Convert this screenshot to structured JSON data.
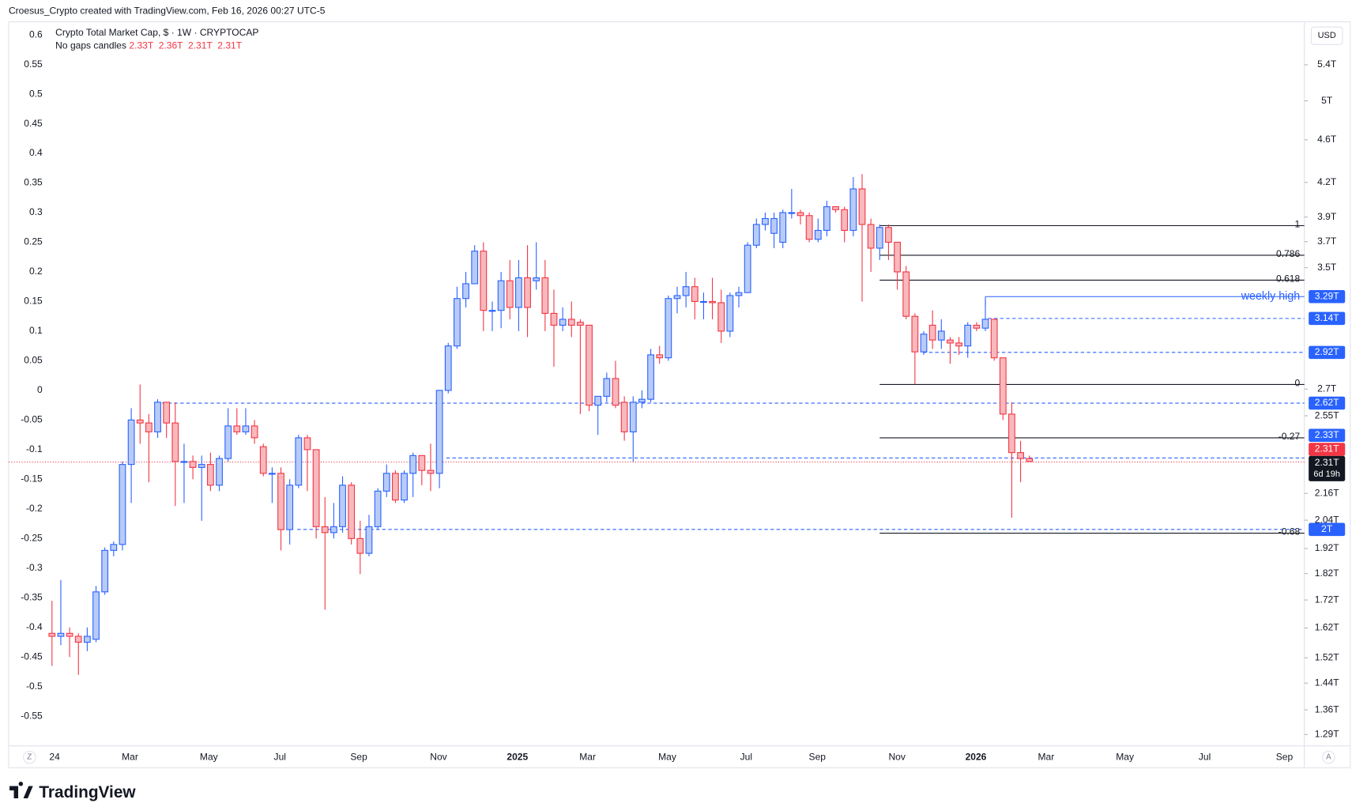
{
  "header": "Croesus_Crypto created with TradingView.com, Feb 16, 2026 00:27 UTC-5",
  "brand": "TradingView",
  "chart_data": {
    "type": "candlestick",
    "title": "Crypto Total Market Cap, $ · 1W · CRYPTOCAP",
    "subtitle": "No gaps candles",
    "legend_values": [
      "2.33T",
      "2.36T",
      "2.31T",
      "2.31T"
    ],
    "currency": "USD",
    "up_color": "#2962ff",
    "down_color": "#f23645",
    "up_fill": "#b8cbf7",
    "down_fill": "#f8b8bc",
    "grid": false,
    "y2_log": true,
    "ylim": [
      -0.6,
      0.622
    ],
    "yticks": [
      0.6,
      0.55,
      0.5,
      0.45,
      0.4,
      0.35,
      0.3,
      0.25,
      0.2,
      0.15,
      0.1,
      0.05,
      0,
      -0.05,
      -0.1,
      -0.15,
      -0.2,
      -0.25,
      -0.3,
      -0.35,
      -0.4,
      -0.45,
      -0.5,
      -0.55
    ],
    "y2lim": [
      1.259,
      5.92
    ],
    "y2ticks": [
      {
        "value": 5.4,
        "label": "5.4T"
      },
      {
        "value": 5,
        "label": "5T"
      },
      {
        "value": 4.6,
        "label": "4.6T"
      },
      {
        "value": 4.2,
        "label": "4.2T"
      },
      {
        "value": 3.9,
        "label": "3.9T"
      },
      {
        "value": 3.7,
        "label": "3.7T"
      },
      {
        "value": 3.5,
        "label": "3.5T"
      },
      {
        "value": 2.7,
        "label": "2.7T"
      },
      {
        "value": 2.55,
        "label": "2.55T"
      },
      {
        "value": 2.16,
        "label": "2.16T"
      },
      {
        "value": 2.04,
        "label": "2.04T"
      },
      {
        "value": 1.92,
        "label": "1.92T"
      },
      {
        "value": 1.82,
        "label": "1.82T"
      },
      {
        "value": 1.72,
        "label": "1.72T"
      },
      {
        "value": 1.62,
        "label": "1.62T"
      },
      {
        "value": 1.52,
        "label": "1.52T"
      },
      {
        "value": 1.44,
        "label": "1.44T"
      },
      {
        "value": 1.36,
        "label": "1.36T"
      },
      {
        "value": 1.29,
        "label": "1.29T"
      }
    ],
    "xlabels": [
      "24",
      "Mar",
      "May",
      "Jul",
      "Sep",
      "Nov",
      "2025",
      "Mar",
      "May",
      "Jul",
      "Sep",
      "Nov",
      "2026",
      "Mar",
      "May",
      "Jul",
      "Sep"
    ],
    "candles": {
      "open": [
        -0.41,
        -0.415,
        -0.41,
        -0.415,
        -0.425,
        -0.42,
        -0.34,
        -0.27,
        -0.26,
        -0.125,
        -0.05,
        -0.055,
        -0.07,
        -0.02,
        -0.055,
        -0.12,
        -0.12,
        -0.13,
        -0.125,
        -0.16,
        -0.115,
        -0.06,
        -0.07,
        -0.06,
        -0.095,
        -0.14,
        -0.14,
        -0.235,
        -0.16,
        -0.08,
        -0.1,
        -0.23,
        -0.24,
        -0.23,
        -0.16,
        -0.25,
        -0.275,
        -0.23,
        -0.17,
        -0.14,
        -0.185,
        -0.14,
        -0.11,
        -0.135,
        -0.14,
        0,
        0.075,
        0.155,
        0.18,
        0.235,
        0.135,
        0.135,
        0.185,
        0.14,
        0.19,
        0.185,
        0.19,
        0.13,
        0.11,
        0.12,
        0.115,
        0.11,
        -0.025,
        -0.01,
        0.02,
        -0.02,
        -0.07,
        -0.02,
        -0.015,
        0.06,
        0.055,
        0.155,
        0.16,
        0.175,
        0.15,
        0.15,
        0.148,
        0.1,
        0.16,
        0.165,
        0.245,
        0.28,
        0.265,
        0.25,
        0.3,
        0.3,
        0.295,
        0.255,
        0.27,
        0.31,
        0.305,
        0.27,
        0.34,
        0.28,
        0.24,
        0.275,
        0.25,
        0.2,
        0.125,
        0.065,
        0.11,
        0.085,
        0.085,
        0.08,
        0.075,
        0.11,
        0.105,
        0.12,
        0.055,
        -0.04,
        -0.105,
        -0.115
      ],
      "high": [
        -0.355,
        -0.32,
        -0.4,
        -0.41,
        -0.4,
        -0.33,
        -0.265,
        -0.255,
        -0.12,
        -0.03,
        0.01,
        -0.04,
        -0.015,
        -0.02,
        -0.02,
        -0.09,
        -0.11,
        -0.11,
        -0.105,
        -0.11,
        -0.03,
        -0.03,
        -0.03,
        -0.05,
        -0.09,
        -0.13,
        -0.13,
        -0.15,
        -0.075,
        -0.075,
        -0.1,
        -0.18,
        -0.19,
        -0.145,
        -0.155,
        -0.22,
        -0.21,
        -0.165,
        -0.125,
        -0.135,
        -0.135,
        -0.105,
        -0.11,
        -0.09,
        0,
        0.08,
        0.175,
        0.2,
        0.245,
        0.25,
        0.15,
        0.2,
        0.22,
        0.22,
        0.245,
        0.25,
        0.22,
        0.17,
        0.14,
        0.15,
        0.12,
        0.11,
        -0.01,
        0.03,
        0.05,
        -0.01,
        -0.01,
        0,
        0.07,
        0.075,
        0.16,
        0.175,
        0.2,
        0.19,
        0.165,
        0.19,
        0.17,
        0.165,
        0.175,
        0.25,
        0.29,
        0.3,
        0.3,
        0.305,
        0.34,
        0.305,
        0.3,
        0.29,
        0.32,
        0.31,
        0.31,
        0.36,
        0.365,
        0.29,
        0.28,
        0.28,
        0.25,
        0.21,
        0.13,
        0.1,
        0.135,
        0.12,
        0.09,
        0.09,
        0.115,
        0.115,
        0.15,
        0.12,
        0.055,
        -0.02,
        -0.085,
        -0.11
      ],
      "low": [
        -0.465,
        -0.43,
        -0.45,
        -0.48,
        -0.44,
        -0.425,
        -0.345,
        -0.28,
        -0.27,
        -0.19,
        -0.09,
        -0.155,
        -0.08,
        -0.08,
        -0.195,
        -0.19,
        -0.15,
        -0.22,
        -0.17,
        -0.17,
        -0.12,
        -0.075,
        -0.075,
        -0.09,
        -0.145,
        -0.19,
        -0.27,
        -0.26,
        -0.165,
        -0.17,
        -0.25,
        -0.37,
        -0.25,
        -0.24,
        -0.26,
        -0.31,
        -0.28,
        -0.235,
        -0.18,
        -0.19,
        -0.19,
        -0.18,
        -0.16,
        -0.17,
        -0.165,
        -0.005,
        0.07,
        0.14,
        0.18,
        0.1,
        0.1,
        0.105,
        0.12,
        0.1,
        0.09,
        0.17,
        0.1,
        0.04,
        0.1,
        0.09,
        -0.04,
        -0.035,
        -0.075,
        -0.02,
        -0.03,
        -0.085,
        -0.12,
        -0.03,
        -0.02,
        0.045,
        0.05,
        0.13,
        0.14,
        0.12,
        0.12,
        0.12,
        0.08,
        0.09,
        0.14,
        0.165,
        0.24,
        0.27,
        0.24,
        0.24,
        0.29,
        0.28,
        0.25,
        0.25,
        0.26,
        0.3,
        0.25,
        0.26,
        0.15,
        0.2,
        0.22,
        0.22,
        0.17,
        0.12,
        0.01,
        0.06,
        0.07,
        0.07,
        0.045,
        0.06,
        0.055,
        0.1,
        0.1,
        0.05,
        -0.05,
        -0.215,
        -0.155,
        -0.12
      ],
      "close": [
        -0.415,
        -0.41,
        -0.415,
        -0.425,
        -0.415,
        -0.34,
        -0.27,
        -0.26,
        -0.125,
        -0.05,
        -0.055,
        -0.07,
        -0.02,
        -0.055,
        -0.12,
        -0.12,
        -0.13,
        -0.125,
        -0.16,
        -0.115,
        -0.06,
        -0.07,
        -0.06,
        -0.08,
        -0.14,
        -0.14,
        -0.235,
        -0.16,
        -0.08,
        -0.1,
        -0.23,
        -0.24,
        -0.23,
        -0.16,
        -0.25,
        -0.275,
        -0.23,
        -0.17,
        -0.14,
        -0.185,
        -0.14,
        -0.11,
        -0.135,
        -0.14,
        0,
        0.075,
        0.155,
        0.18,
        0.235,
        0.135,
        0.135,
        0.185,
        0.14,
        0.19,
        0.14,
        0.19,
        0.13,
        0.11,
        0.12,
        0.11,
        0.11,
        -0.025,
        -0.01,
        0.02,
        -0.025,
        -0.07,
        -0.02,
        -0.015,
        0.06,
        0.055,
        0.155,
        0.16,
        0.175,
        0.15,
        0.15,
        0.148,
        0.1,
        0.16,
        0.165,
        0.245,
        0.28,
        0.29,
        0.29,
        0.3,
        0.3,
        0.295,
        0.255,
        0.27,
        0.31,
        0.305,
        0.27,
        0.34,
        0.28,
        0.24,
        0.275,
        0.25,
        0.2,
        0.125,
        0.065,
        0.095,
        0.085,
        0.1,
        0.08,
        0.075,
        0.11,
        0.105,
        0.12,
        0.055,
        -0.04,
        -0.105,
        -0.115,
        -0.12
      ]
    },
    "fib_lines": [
      {
        "level": 1,
        "y": 0.278
      },
      {
        "level": 0.786,
        "y": 0.228
      },
      {
        "level": 0.618,
        "y": 0.186
      },
      {
        "level": 0,
        "y": 0.01
      },
      {
        "level": -0.27,
        "y": -0.08
      },
      {
        "level": -0.68,
        "y": -0.241
      }
    ],
    "price_lines": [
      {
        "value": 3.29,
        "label": "3.29T",
        "text": "weekly high"
      },
      {
        "value": 3.14,
        "label": "3.14T"
      },
      {
        "value": 2.92,
        "label": "2.92T"
      },
      {
        "value": 2.62,
        "label": "2.62T"
      },
      {
        "value": 2.33,
        "label": "2.33T"
      },
      {
        "value": 2,
        "label": "2T"
      }
    ],
    "last_price": {
      "value": 2.31,
      "label": "2.31T",
      "countdown": "6d 19h"
    }
  }
}
